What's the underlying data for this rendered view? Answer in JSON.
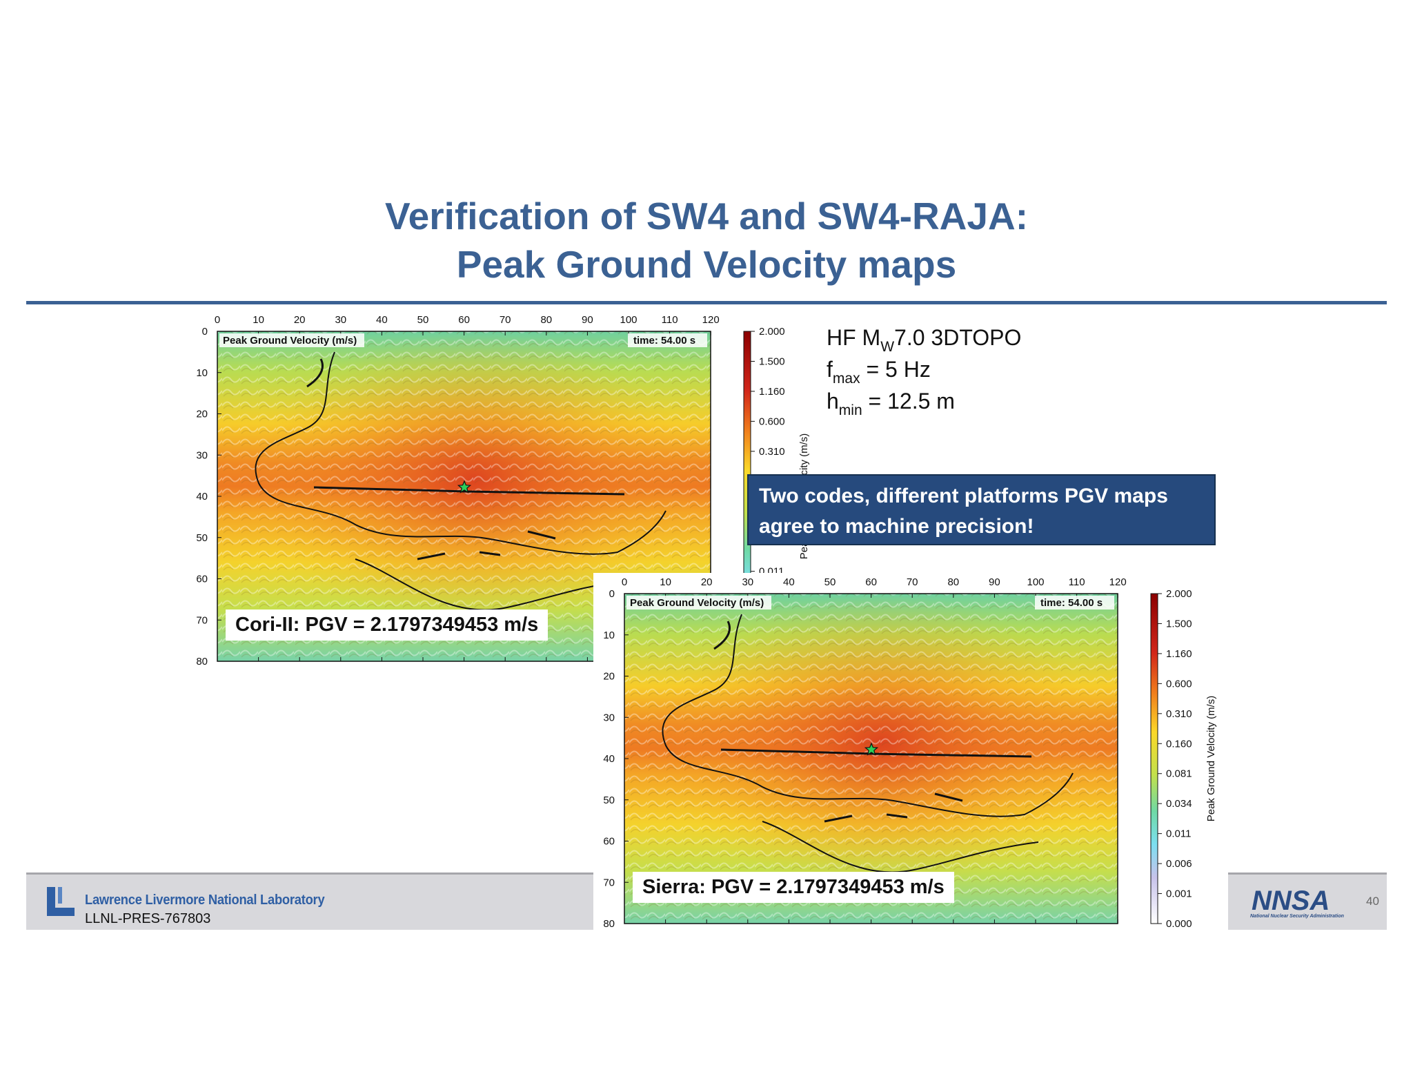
{
  "slide": {
    "title_line1": "Verification of SW4 and SW4-RAJA:",
    "title_line2": "Peak Ground Velocity maps",
    "info": {
      "line1_pre": "HF M",
      "line1_sub": "W",
      "line1_post": "7.0 3DTOPO",
      "line2_pre": "f",
      "line2_sub": "max",
      "line2_post": " = 5 Hz",
      "line3_pre": "h",
      "line3_sub": "min",
      "line3_post": " = 12.5 m"
    },
    "callout_line1": "Two codes, different platforms PGV maps",
    "callout_line2": "agree to machine precision!",
    "footer": {
      "lab_name": "Lawrence Livermore National Laboratory",
      "doc_id": "LLNL-PRES-767803",
      "nnsa_logo": "NNSA",
      "nnsa_sub": "National Nuclear Security Administration",
      "page_number": "40"
    }
  },
  "maps": [
    {
      "pgv_label": "Cori-II: PGV = 2.1797349453 m/s",
      "panel_title": "Peak Ground Velocity (m/s)",
      "time_label": "time: 54.00 s",
      "colorbar_label": "Peak Ground Velocity (m/s)"
    },
    {
      "pgv_label": "Sierra: PGV = 2.1797349453 m/s",
      "panel_title": "Peak Ground Velocity (m/s)",
      "time_label": "time: 54.00 s",
      "colorbar_label": "Peak Ground Velocity (m/s)"
    }
  ],
  "axes": {
    "x_ticks": [
      "0",
      "10",
      "20",
      "30",
      "40",
      "50",
      "60",
      "70",
      "80",
      "90",
      "100",
      "110",
      "120"
    ],
    "y_ticks": [
      "0",
      "10",
      "20",
      "30",
      "40",
      "50",
      "60",
      "70",
      "80"
    ],
    "colorbar_ticks": [
      "2.000",
      "1.500",
      "1.160",
      "0.600",
      "0.310",
      "0.160",
      "0.081",
      "0.034",
      "0.011",
      "0.006",
      "0.001",
      "0.000"
    ]
  },
  "colors": {
    "title_blue": "#3b6193",
    "callout_bg": "#264a7d"
  }
}
